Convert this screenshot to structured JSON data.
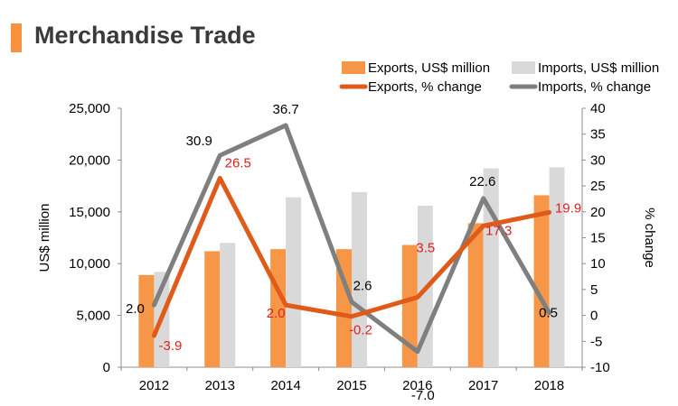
{
  "page": {
    "title": "Merchandise Trade"
  },
  "colors": {
    "title_bar": "#F7913D",
    "exports_bar": "#F79646",
    "imports_bar": "#D9D9D9",
    "exports_line": "#E05A1A",
    "imports_line": "#7F7F7F",
    "exports_label": "#E0201E",
    "text": "#000000"
  },
  "chart_data": {
    "type": "bar",
    "title": "",
    "categories": [
      "2012",
      "2013",
      "2014",
      "2015",
      "2016",
      "2017",
      "2018"
    ],
    "xlabel": "",
    "ylabel": "US$ million",
    "y2label": "% change",
    "ylim": [
      0,
      25000
    ],
    "y2lim": [
      -10,
      40
    ],
    "yticks": [
      "0",
      "5,000",
      "10,000",
      "15,000",
      "20,000",
      "25,000"
    ],
    "y2ticks": [
      "-10",
      "-5",
      "0",
      "5",
      "10",
      "15",
      "20",
      "25",
      "30",
      "35",
      "40"
    ],
    "legend_position": "top-right",
    "series": [
      {
        "name": "Exports, US$ million",
        "kind": "bar",
        "axis": "left",
        "values": [
          8900,
          11200,
          11400,
          11400,
          11800,
          13900,
          16600
        ]
      },
      {
        "name": "Imports, US$ million",
        "kind": "bar",
        "axis": "left",
        "values": [
          9200,
          12000,
          16400,
          16900,
          15600,
          19200,
          19300
        ]
      },
      {
        "name": "Exports, % change",
        "kind": "line",
        "axis": "right",
        "values": [
          -3.9,
          26.5,
          2.0,
          -0.2,
          3.5,
          17.3,
          19.9
        ],
        "labels": [
          "-3.9",
          "26.5",
          "2.0",
          "-0.2",
          "3.5",
          "17.3",
          "19.9"
        ]
      },
      {
        "name": "Imports, % change",
        "kind": "line",
        "axis": "right",
        "values": [
          2.0,
          30.9,
          36.7,
          2.6,
          -7.0,
          22.6,
          0.5
        ],
        "labels": [
          "2.0",
          "30.9",
          "36.7",
          "2.6",
          "-7.0",
          "22.6",
          "0.5"
        ]
      }
    ]
  }
}
